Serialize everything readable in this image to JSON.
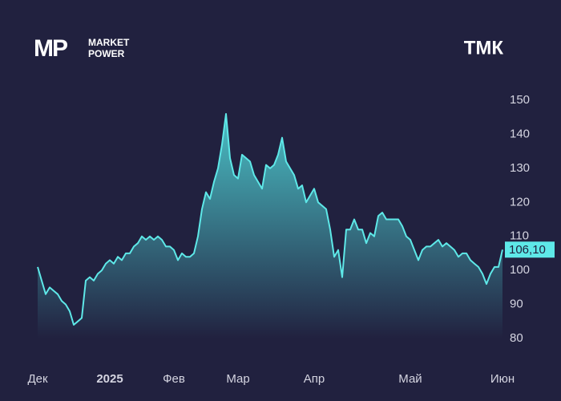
{
  "logo": {
    "mark": "MP",
    "lines": [
      "MARKET",
      "POWER"
    ]
  },
  "chart_data": {
    "type": "area",
    "title": "ТМК",
    "categories": [
      "Дек",
      null,
      null,
      null,
      null,
      null,
      null,
      null,
      null,
      null,
      null,
      null,
      null,
      null,
      null,
      null,
      null,
      null,
      "2025",
      null,
      null,
      null,
      null,
      null,
      null,
      null,
      null,
      null,
      null,
      null,
      null,
      null,
      null,
      null,
      "Фев",
      null,
      null,
      null,
      null,
      null,
      null,
      null,
      null,
      null,
      null,
      null,
      null,
      null,
      null,
      null,
      "Мар",
      null,
      null,
      null,
      null,
      null,
      null,
      null,
      null,
      null,
      null,
      null,
      null,
      null,
      null,
      null,
      null,
      null,
      null,
      "Апр",
      null,
      null,
      null,
      null,
      null,
      null,
      null,
      null,
      null,
      null,
      null,
      null,
      null,
      null,
      null,
      null,
      null,
      null,
      null,
      null,
      null,
      null,
      null,
      "Май",
      null,
      null,
      null,
      null,
      null,
      null,
      null,
      null,
      null,
      null,
      null,
      null,
      null,
      null,
      null,
      null,
      null,
      null,
      null,
      null,
      null,
      null,
      "Июн"
    ],
    "series": [
      {
        "color": "#5ee8e8",
        "values": [
          101,
          97,
          93,
          95,
          94,
          93,
          91,
          90,
          88,
          84,
          85,
          86,
          97,
          98,
          97,
          99,
          100,
          102,
          103,
          102,
          104,
          103,
          105,
          105,
          107,
          108,
          110,
          109,
          110,
          109,
          110,
          109,
          107,
          107,
          106,
          103,
          105,
          104,
          104,
          105,
          110,
          118,
          123,
          121,
          126,
          130,
          137,
          146,
          133,
          128,
          127,
          134,
          133,
          132,
          128,
          126,
          124,
          131,
          130,
          131,
          134,
          139,
          132,
          130,
          128,
          124,
          125,
          120,
          122,
          124,
          120,
          119,
          118,
          112,
          104,
          106,
          98,
          112,
          112,
          115,
          112,
          112,
          108,
          111,
          110,
          116,
          117,
          115,
          115,
          115,
          115,
          113,
          110,
          109,
          106,
          103,
          106,
          107,
          107,
          108,
          109,
          107,
          108,
          107,
          106,
          104,
          105,
          105,
          103,
          102,
          101,
          99,
          96,
          99,
          101,
          101,
          106.1
        ]
      }
    ],
    "price_tag": {
      "value": 106.1,
      "label": "106,10"
    },
    "ylim": [
      80,
      150
    ],
    "yticks": [
      80,
      90,
      100,
      110,
      120,
      130,
      140,
      150
    ]
  }
}
